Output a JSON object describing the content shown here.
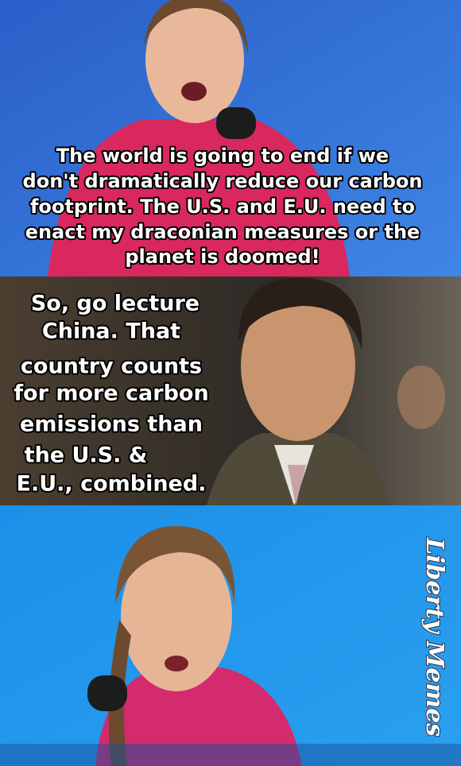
{
  "panels": [
    {
      "caption": [
        "The world is going to end if we",
        "don't dramatically reduce our carbon",
        "footprint. The U.S. and E.U. need to",
        "enact my draconian measures or the",
        "planet is doomed!"
      ]
    },
    {
      "caption": [
        "So, go lecture",
        "China. That",
        "country counts",
        "for more carbon",
        "emissions than",
        "the U.S. &",
        "E.U., combined."
      ]
    }
  ],
  "watermark": "Liberty Memes"
}
